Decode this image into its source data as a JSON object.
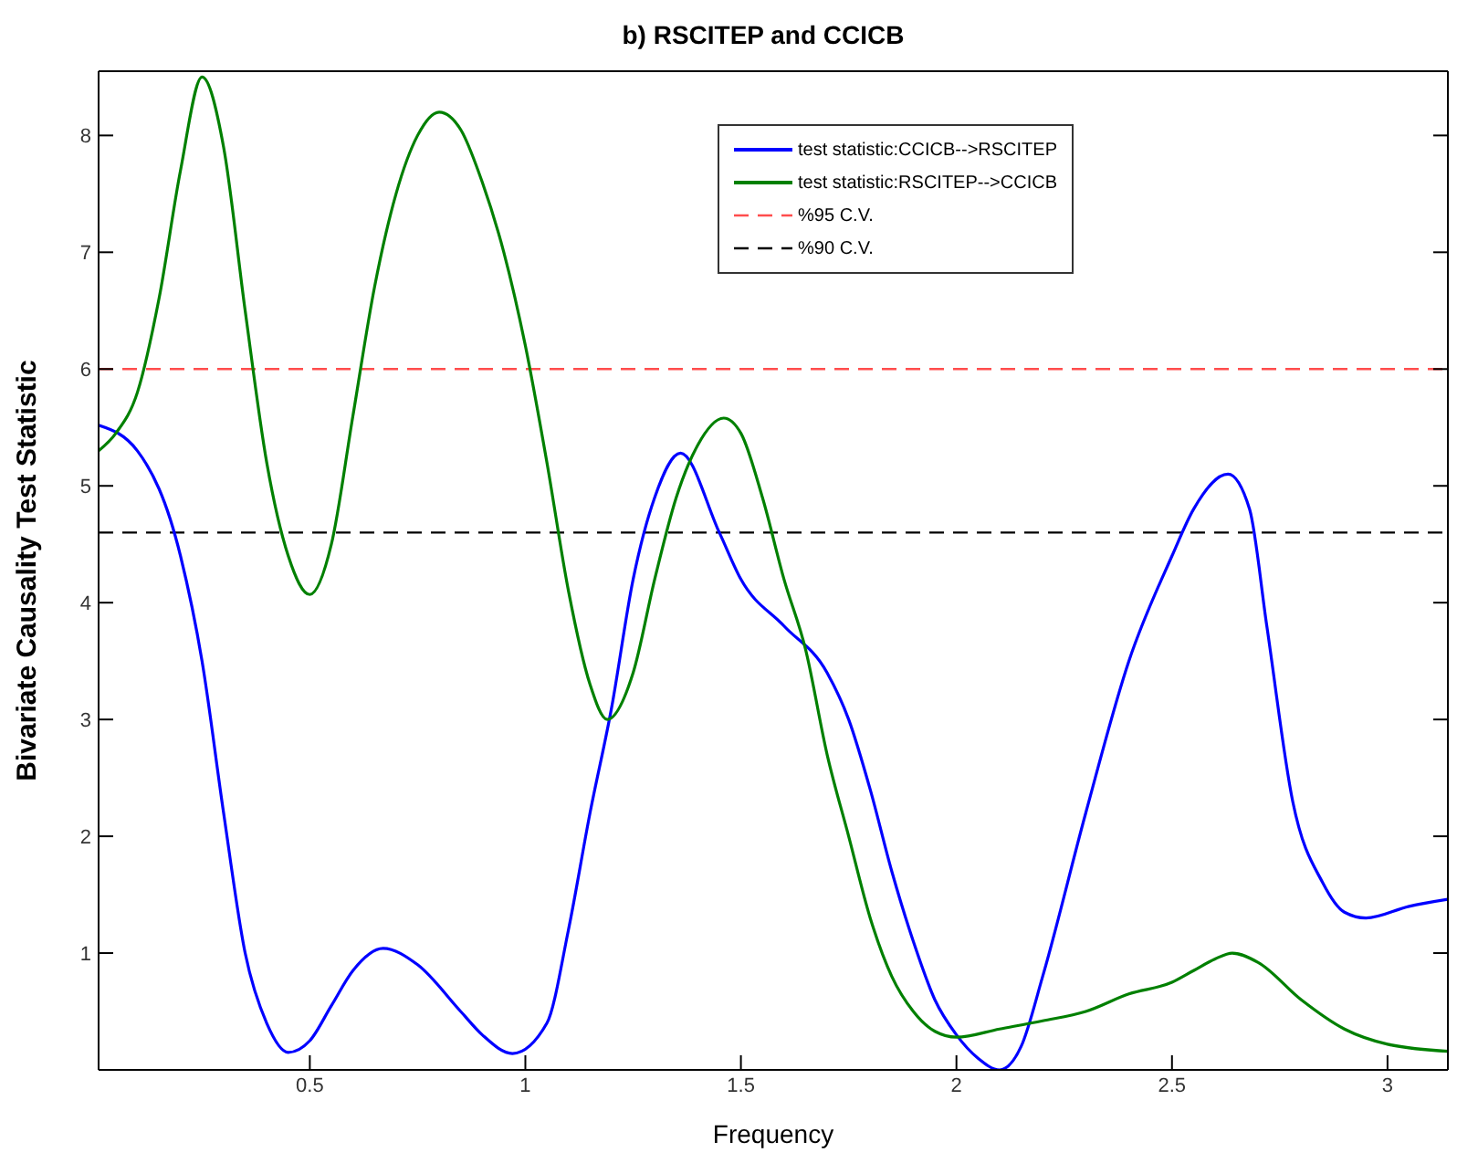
{
  "chart_data": {
    "type": "line",
    "title": "b) RSCITEP and CCICB",
    "xlabel": "Frequency",
    "ylabel": "Bivariate Causality Test Statistic",
    "xlim": [
      0.01,
      3.14
    ],
    "xticks": [
      0.5,
      1,
      1.5,
      2,
      2.5,
      3
    ],
    "ylim": [
      0,
      8.55
    ],
    "yticks": [
      1,
      2,
      3,
      4,
      5,
      6,
      7,
      8
    ],
    "legend": "top right",
    "marker": "none",
    "series": [
      {
        "name": "test statistic:CCICB-->RSCITEP",
        "color": "#0000ff",
        "x": [
          0.01,
          0.1,
          0.2,
          0.25,
          0.3,
          0.35,
          0.4,
          0.45,
          0.5,
          0.55,
          0.6,
          0.67,
          0.75,
          0.85,
          0.9,
          0.97,
          1.05,
          1.1,
          1.15,
          1.2,
          1.25,
          1.3,
          1.36,
          1.45,
          1.5,
          1.6,
          1.7,
          1.75,
          1.8,
          1.85,
          1.9,
          1.95,
          2.0,
          2.05,
          2.1,
          2.15,
          2.2,
          2.3,
          2.4,
          2.5,
          2.55,
          2.63,
          2.68,
          2.72,
          2.78,
          2.85,
          2.9,
          2.95,
          3.05,
          3.14
        ],
        "values": [
          5.52,
          5.3,
          4.4,
          3.5,
          2.2,
          1.0,
          0.4,
          0.15,
          0.25,
          0.55,
          0.85,
          1.04,
          0.9,
          0.5,
          0.3,
          0.14,
          0.4,
          1.2,
          2.2,
          3.1,
          4.2,
          4.9,
          5.28,
          4.6,
          4.2,
          3.8,
          3.4,
          3.0,
          2.4,
          1.7,
          1.1,
          0.6,
          0.3,
          0.1,
          0.0,
          0.2,
          0.8,
          2.2,
          3.5,
          4.4,
          4.8,
          5.1,
          4.8,
          3.8,
          2.3,
          1.6,
          1.35,
          1.3,
          1.4,
          1.46
        ]
      },
      {
        "name": "test statistic:RSCITEP-->CCICB",
        "color": "#008000",
        "x": [
          0.01,
          0.05,
          0.1,
          0.15,
          0.2,
          0.25,
          0.3,
          0.35,
          0.4,
          0.45,
          0.5,
          0.55,
          0.6,
          0.65,
          0.7,
          0.75,
          0.8,
          0.85,
          0.9,
          0.95,
          1.0,
          1.05,
          1.1,
          1.15,
          1.19,
          1.25,
          1.3,
          1.35,
          1.4,
          1.46,
          1.5,
          1.55,
          1.6,
          1.65,
          1.7,
          1.75,
          1.8,
          1.85,
          1.9,
          1.95,
          2.0,
          2.1,
          2.2,
          2.3,
          2.4,
          2.5,
          2.55,
          2.6,
          2.64,
          2.7,
          2.8,
          2.9,
          3.0,
          3.14
        ],
        "values": [
          5.3,
          5.45,
          5.8,
          6.6,
          7.7,
          8.5,
          7.9,
          6.5,
          5.2,
          4.4,
          4.07,
          4.5,
          5.6,
          6.7,
          7.5,
          8.0,
          8.2,
          8.05,
          7.6,
          7.0,
          6.2,
          5.2,
          4.1,
          3.3,
          3.0,
          3.4,
          4.2,
          4.9,
          5.35,
          5.58,
          5.45,
          4.9,
          4.2,
          3.6,
          2.7,
          2.0,
          1.3,
          0.8,
          0.5,
          0.33,
          0.28,
          0.35,
          0.42,
          0.5,
          0.65,
          0.75,
          0.85,
          0.95,
          1.0,
          0.92,
          0.6,
          0.35,
          0.22,
          0.16
        ]
      }
    ],
    "ref_lines": [
      {
        "axis": "y",
        "value": 6,
        "label": "%95 C.V.",
        "color": "#ff4d4d",
        "line_style": "dashed"
      },
      {
        "axis": "y",
        "value": 4.6,
        "label": "%90 C.V.",
        "color": "#000000",
        "line_style": "dashed"
      }
    ]
  }
}
